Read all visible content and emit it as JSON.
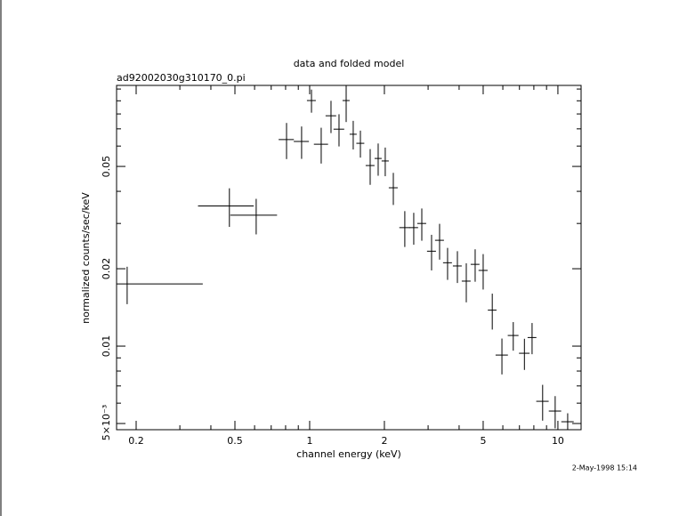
{
  "chart_data": {
    "type": "scatter",
    "title": "data and folded model",
    "subtitle": "ad92002030g310170_0.pi",
    "xlabel": "channel energy (keV)",
    "ylabel": "normalized counts/sec/keV",
    "timestamp": "2-May-1998 15:14",
    "xlog": true,
    "ylog": true,
    "color": "#000000",
    "x": [
      0.184,
      0.475,
      0.609,
      0.807,
      0.928,
      1.017,
      1.113,
      1.219,
      1.313,
      1.403,
      1.498,
      1.601,
      1.753,
      1.888,
      2.016,
      2.173,
      2.417,
      2.626,
      2.83,
      3.098,
      3.337,
      3.594,
      3.937,
      4.275,
      4.642,
      5.0,
      5.44,
      5.95,
      6.61,
      7.33,
      7.87,
      8.68,
      9.75,
      10.95
    ],
    "xerr": [
      0.187,
      0.12,
      0.13,
      0.057,
      0.065,
      0.042,
      0.073,
      0.06,
      0.065,
      0.046,
      0.049,
      0.059,
      0.072,
      0.062,
      0.067,
      0.09,
      0.12,
      0.108,
      0.117,
      0.128,
      0.138,
      0.148,
      0.162,
      0.176,
      0.19,
      0.21,
      0.22,
      0.34,
      0.33,
      0.36,
      0.32,
      0.5,
      0.56,
      0.63
    ],
    "y": [
      0.01746,
      0.0351,
      0.0323,
      0.0636,
      0.0625,
      0.0902,
      0.061,
      0.0787,
      0.0698,
      0.0902,
      0.0667,
      0.0615,
      0.0504,
      0.0537,
      0.0525,
      0.0413,
      0.0289,
      0.0289,
      0.03,
      0.0234,
      0.0258,
      0.0211,
      0.0205,
      0.0179,
      0.0208,
      0.0197,
      0.0138,
      0.00923,
      0.011,
      0.00938,
      0.0108,
      0.0061,
      0.00559,
      0.00508
    ],
    "yerr": [
      0.0029,
      0.006,
      0.0051,
      0.0102,
      0.009,
      0.0093,
      0.0097,
      0.0113,
      0.01,
      0.0158,
      0.0085,
      0.0074,
      0.008,
      0.0077,
      0.0067,
      0.0059,
      0.0046,
      0.0041,
      0.0043,
      0.0037,
      0.0041,
      0.003,
      0.0029,
      0.0031,
      0.003,
      0.0031,
      0.0022,
      0.00147,
      0.0014,
      0.0013,
      0.0015,
      0.00097,
      0.0008,
      0.0004
    ],
    "xlim": [
      0.1668,
      12.4
    ],
    "ylim": [
      0.00473,
      0.1033
    ],
    "xticks": [
      0.2,
      0.5,
      1,
      2,
      5,
      10
    ],
    "xminorticks": [
      0.3,
      0.4,
      0.6,
      0.7,
      0.8,
      0.9,
      3,
      4,
      6,
      7,
      8,
      9
    ],
    "yticks": [
      {
        "value": 0.005,
        "label": "5×10⁻³"
      },
      0.01,
      0.02,
      0.05
    ],
    "yminorticks": [
      0.006,
      0.007,
      0.008,
      0.009,
      0.03,
      0.04,
      0.06,
      0.07,
      0.08,
      0.09,
      0.1
    ]
  }
}
